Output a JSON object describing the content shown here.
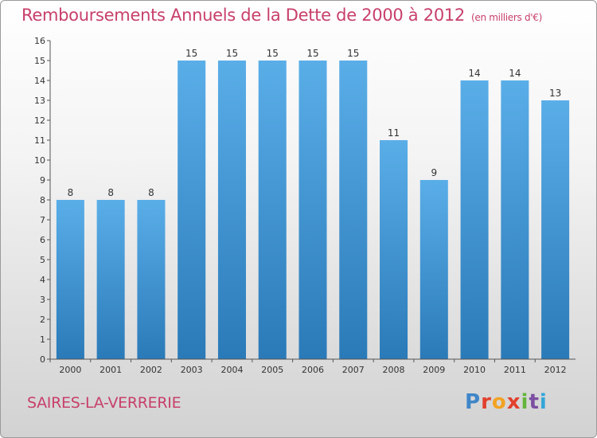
{
  "header": {
    "title": "Remboursements Annuels de la Dette de 2000 à 2012",
    "unit": "(en milliers d'€)"
  },
  "footer": {
    "commune": "SAIRES-LA-VERRERIE",
    "logo_letters": [
      "P",
      "r",
      "o",
      "x",
      "i",
      "t",
      "i"
    ]
  },
  "colors": {
    "bar_top": "#5aaee8",
    "bar_bottom": "#2a7ab8",
    "title": "#c8406a",
    "axis": "#555555"
  },
  "chart_data": {
    "type": "bar",
    "title": "Remboursements Annuels de la Dette de 2000 à 2012",
    "xlabel": "",
    "ylabel": "",
    "categories": [
      "2000",
      "2001",
      "2002",
      "2003",
      "2004",
      "2005",
      "2006",
      "2007",
      "2008",
      "2009",
      "2010",
      "2011",
      "2012"
    ],
    "values": [
      8,
      8,
      8,
      15,
      15,
      15,
      15,
      15,
      11,
      9,
      14,
      14,
      13
    ],
    "ylim": [
      0,
      16
    ],
    "yticks": [
      0,
      1,
      2,
      3,
      4,
      5,
      6,
      7,
      8,
      9,
      10,
      11,
      12,
      13,
      14,
      15,
      16
    ],
    "grid": false,
    "legend": "none"
  }
}
